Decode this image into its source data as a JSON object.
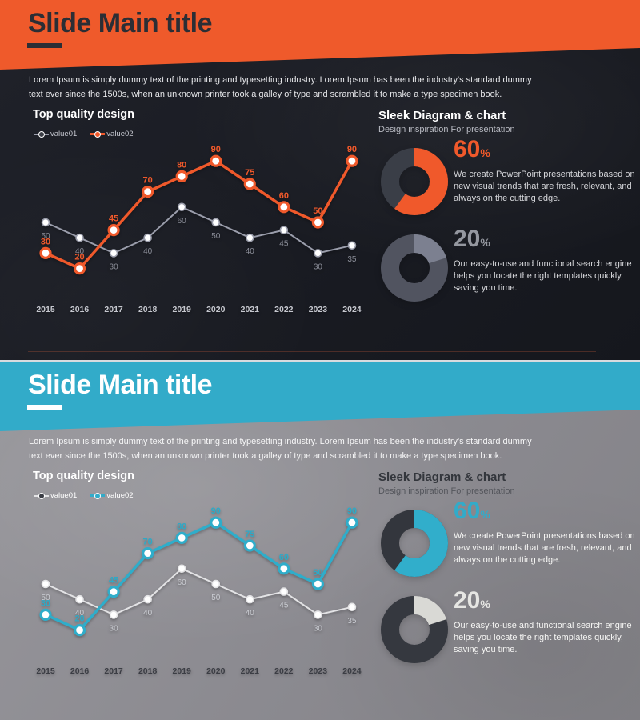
{
  "slides": [
    {
      "title": "Slide Main title",
      "accent": "#f0592b",
      "muted": "#9a9dab",
      "intro_lines": [
        "Lorem Ipsum is simply dummy text of the printing and typesetting industry. Lorem Ipsum has been the industry's standard dummy",
        "text ever since the 1500s, when an unknown printer took a galley of type and scrambled it to make a type specimen book."
      ],
      "left_heading": "Top quality design",
      "right_heading": "Sleek Diagram & chart",
      "right_subheading": "Design inspiration For presentation",
      "stats": [
        {
          "value": "60",
          "suffix": "%",
          "value_color": "#f0592b",
          "text": "We create PowerPoint presentations based on new visual trends that are fresh, relevant, and always on the cutting edge."
        },
        {
          "value": "20",
          "suffix": "%",
          "value_color": "#94979f",
          "text": "Our easy-to-use and functional search engine helps you locate the right templates quickly, saving you time."
        }
      ]
    },
    {
      "title": "Slide Main title",
      "accent": "#32abc9",
      "muted": "#e3e3e5",
      "intro_lines": [
        "Lorem Ipsum is simply dummy text of the printing and typesetting industry. Lorem Ipsum has been the industry's standard dummy",
        "text ever since the 1500s, when an unknown printer took a galley of type and scrambled it to make a type specimen book."
      ],
      "left_heading": "Top quality design",
      "right_heading": "Sleek Diagram & chart",
      "right_subheading": "Design inspiration For presentation",
      "stats": [
        {
          "value": "60",
          "suffix": "%",
          "value_color": "#32abc9",
          "text": "We create PowerPoint presentations based on new visual trends that are fresh, relevant, and always on the cutting edge."
        },
        {
          "value": "20",
          "suffix": "%",
          "value_color": "#e6e6e3",
          "text": "Our easy-to-use and functional search engine helps you locate the right templates quickly, saving you time."
        }
      ]
    }
  ],
  "chart_data": [
    {
      "type": "line",
      "title": "Top quality design",
      "categories": [
        "2015",
        "2016",
        "2017",
        "2018",
        "2019",
        "2020",
        "2021",
        "2022",
        "2023",
        "2024"
      ],
      "series": [
        {
          "name": "value01",
          "values": [
            50,
            40,
            30,
            40,
            60,
            50,
            40,
            45,
            30,
            35
          ],
          "color": "#9a9dab",
          "label_color": "#8b8e99"
        },
        {
          "name": "value02",
          "values": [
            30,
            20,
            45,
            70,
            80,
            90,
            75,
            60,
            50,
            90
          ],
          "color": "#f0592b",
          "label_color": "#f0592b"
        }
      ],
      "axis_color": "#c6c8cf",
      "ylim": [
        0,
        100
      ],
      "grid": false,
      "legend_position": "top-left"
    },
    {
      "type": "pie",
      "style": "donut",
      "percent": 60,
      "color": "#f0592b",
      "rest_color": "#3a3e47",
      "label": "60%"
    },
    {
      "type": "pie",
      "style": "donut",
      "percent": 20,
      "color": "#7c8090",
      "rest_color": "#515460",
      "label": "20%"
    },
    {
      "type": "line",
      "title": "Top quality design",
      "categories": [
        "2015",
        "2016",
        "2017",
        "2018",
        "2019",
        "2020",
        "2021",
        "2022",
        "2023",
        "2024"
      ],
      "series": [
        {
          "name": "value01",
          "values": [
            50,
            40,
            30,
            40,
            60,
            50,
            40,
            45,
            30,
            35
          ],
          "color": "#e3e3e5",
          "label_color": "#caccd2"
        },
        {
          "name": "value02",
          "values": [
            30,
            20,
            45,
            70,
            80,
            90,
            75,
            60,
            50,
            90
          ],
          "color": "#2fadca",
          "label_color": "#2fa9c6"
        }
      ],
      "axis_color": "#3b3d44",
      "ylim": [
        0,
        100
      ],
      "grid": false,
      "legend_position": "top-left"
    },
    {
      "type": "pie",
      "style": "donut",
      "percent": 60,
      "color": "#31aecb",
      "rest_color": "#33363d",
      "label": "60%"
    },
    {
      "type": "pie",
      "style": "donut",
      "percent": 20,
      "color": "#d9d9d5",
      "rest_color": "#35383f",
      "label": "20%"
    }
  ]
}
